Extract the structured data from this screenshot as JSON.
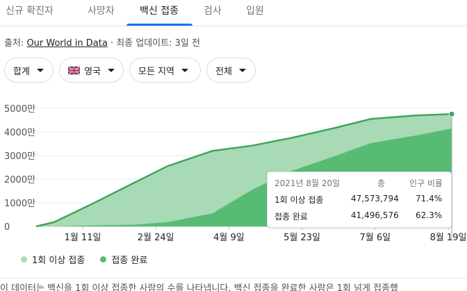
{
  "tabs": [
    {
      "label": "신규 확진자"
    },
    {
      "label": "사망자"
    },
    {
      "label": "백신 접종"
    },
    {
      "label": "검사"
    },
    {
      "label": "입원"
    }
  ],
  "active_tab_index": 2,
  "source": {
    "prefix": "출처: ",
    "link": "Our World in Data",
    "updated": " · 최종 업데이트: 3일 전"
  },
  "filters": [
    {
      "label": "합계"
    },
    {
      "label": "영국",
      "icon": "uk-flag-icon"
    },
    {
      "label": "모든 지역"
    },
    {
      "label": "전체"
    }
  ],
  "chart_data": {
    "type": "area",
    "y_ticks": [
      "0",
      "1000만",
      "2000만",
      "3000만",
      "4000만",
      "5000만"
    ],
    "ylim": [
      0,
      50000000
    ],
    "x_tick_labels": [
      "1월 11일",
      "2월 24일",
      "4월 9일",
      "5월 23일",
      "7월 6일",
      "8월 19일"
    ],
    "x": [
      "2021-01-01",
      "2021-01-11",
      "2021-02-01",
      "2021-02-24",
      "2021-03-15",
      "2021-04-09",
      "2021-05-01",
      "2021-05-23",
      "2021-06-15",
      "2021-07-06",
      "2021-07-31",
      "2021-08-20"
    ],
    "series": [
      {
        "name": "1회 이상 접종",
        "color": "#a8dab5",
        "values": [
          0,
          1800000,
          9500000,
          18300000,
          25500000,
          32000000,
          34200000,
          37500000,
          41500000,
          45500000,
          47000000,
          47573794
        ]
      },
      {
        "name": "접종 완료",
        "color": "#57bb74",
        "values": [
          0,
          0,
          400000,
          700000,
          1800000,
          5500000,
          15500000,
          23500000,
          29500000,
          35300000,
          38500000,
          41496576
        ]
      }
    ],
    "grid": true,
    "legend": "bottom-left"
  },
  "tooltip": {
    "date": "2021년 8월 20일",
    "col_total": "총",
    "col_ratio": "인구 비율",
    "rows": [
      {
        "label": "1회 이상 접종",
        "total": "47,573,794",
        "ratio": "71.4%"
      },
      {
        "label": "접종 완료",
        "total": "41,496,576",
        "ratio": "62.3%"
      }
    ]
  },
  "legend": [
    {
      "label": "1회 이상 접종",
      "color": "#a8dab5"
    },
    {
      "label": "접종 완료",
      "color": "#57bb74"
    }
  ],
  "footnote": "이 데이터는 백신을 1회 이상 접종한 사람의 수를 나타냅니다. 백신 접종을 완료한 사람은 1회 넘게 접종했"
}
